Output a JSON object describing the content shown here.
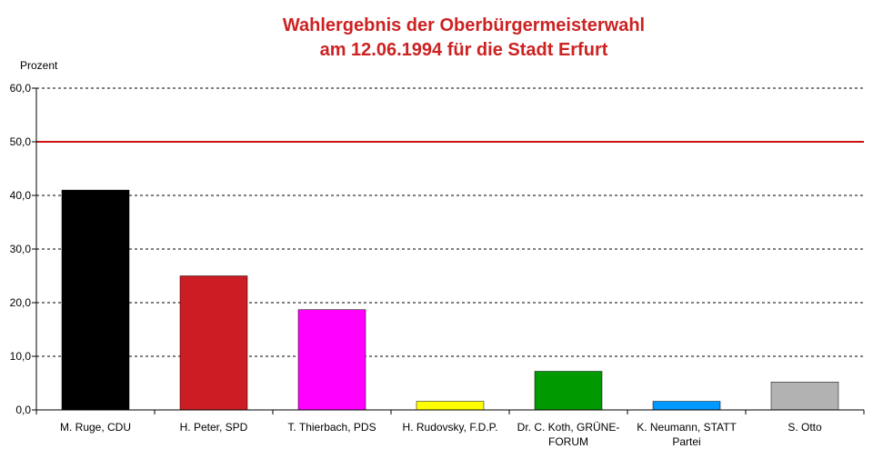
{
  "chart_data": {
    "type": "bar",
    "title_lines": [
      "Wahlergebnis der Oberbürgermeisterwahl",
      "am 12.06.1994 für die Stadt Erfurt"
    ],
    "ylabel": "Prozent",
    "ylim": [
      0,
      60
    ],
    "yticks": [
      "0,0",
      "10,0",
      "20,0",
      "30,0",
      "40,0",
      "50,0",
      "60,0"
    ],
    "ytick_values": [
      0,
      10,
      20,
      30,
      40,
      50,
      60
    ],
    "reference_line": {
      "value": 50,
      "color": "#cc1111"
    },
    "grid": true,
    "categories": [
      [
        "M. Ruge, CDU"
      ],
      [
        "H. Peter, SPD"
      ],
      [
        "T. Thierbach, PDS"
      ],
      [
        "H. Rudovsky, F.D.P."
      ],
      [
        "Dr. C. Koth, GRÜNE-",
        "FORUM"
      ],
      [
        "K. Neumann, STATT",
        "Partei"
      ],
      [
        "S. Otto"
      ]
    ],
    "values": [
      41.0,
      25.0,
      18.7,
      1.6,
      7.2,
      1.6,
      5.2
    ],
    "colors": [
      "#000000",
      "#cc1c24",
      "#ff00ff",
      "#ffff00",
      "#009900",
      "#0099ff",
      "#b2b2b2"
    ]
  }
}
